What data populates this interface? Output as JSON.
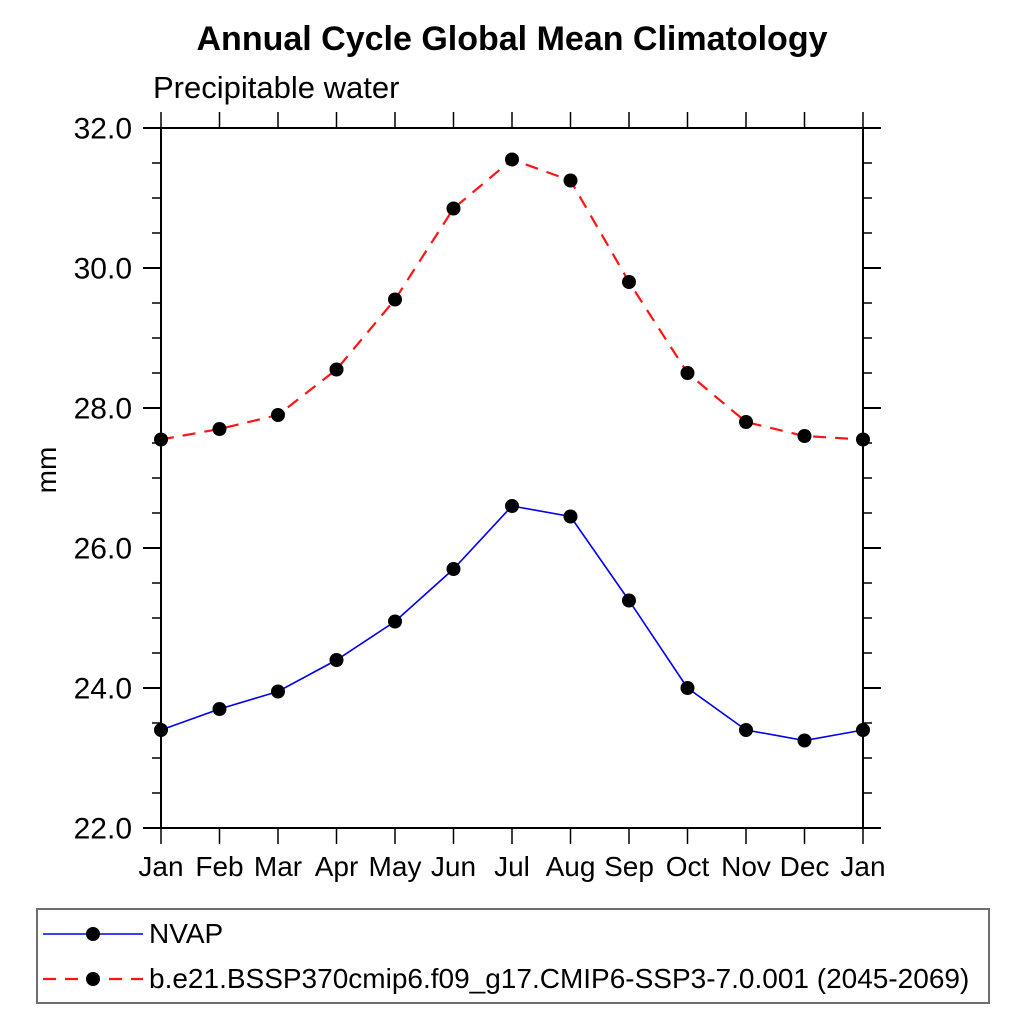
{
  "page": {
    "background": "#ffffff"
  },
  "chart_data": {
    "type": "line",
    "title": "Annual Cycle Global Mean Climatology",
    "subtitle": "Precipitable water",
    "ylabel": "mm",
    "x_tick_labels": [
      "Jan",
      "Feb",
      "Mar",
      "Apr",
      "May",
      "Jun",
      "Jul",
      "Aug",
      "Sep",
      "Oct",
      "Nov",
      "Dec",
      "Jan"
    ],
    "y_tick_labels": [
      "22.0",
      "24.0",
      "26.0",
      "28.0",
      "30.0",
      "32.0"
    ],
    "ylim": [
      22.0,
      32.0
    ],
    "y_major_step": 2.0,
    "y_minor_step": 0.5,
    "grid": false,
    "frame_color": "#000000",
    "legend_position": "bottom-left-box",
    "marker_shape": "filled-circle",
    "series": [
      {
        "name": "NVAP",
        "line_color": "#0000ee",
        "line_style": "solid",
        "line_width": 1.6,
        "marker_color": "#000000",
        "values": [
          23.4,
          23.7,
          23.95,
          24.4,
          24.95,
          25.7,
          26.6,
          26.45,
          25.25,
          24.0,
          23.4,
          23.25,
          23.4
        ]
      },
      {
        "name": "b.e21.BSSP370cmip6.f09_g17.CMIP6-SSP3-7.0.001 (2045-2069)",
        "line_color": "#ff1414",
        "line_style": "dashed",
        "line_width": 2.2,
        "marker_color": "#000000",
        "values": [
          27.55,
          27.7,
          27.9,
          28.55,
          29.55,
          30.85,
          31.55,
          31.25,
          29.8,
          28.5,
          27.8,
          27.6,
          27.55
        ]
      }
    ]
  }
}
